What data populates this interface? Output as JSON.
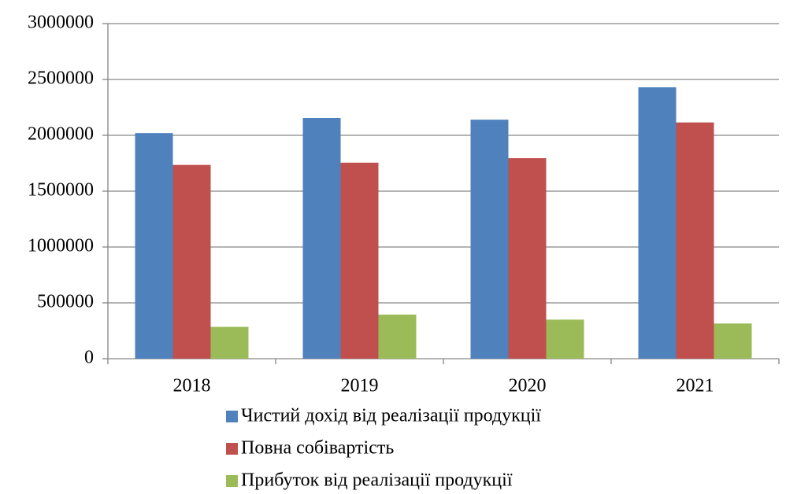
{
  "chart_data": {
    "type": "bar",
    "categories": [
      "2018",
      "2019",
      "2020",
      "2021"
    ],
    "series": [
      {
        "name": "Чистий дохід від реалізації продукції",
        "color": "#4f81bd",
        "values": [
          2020000,
          2155000,
          2140000,
          2430000
        ]
      },
      {
        "name": "Повна собівартість",
        "color": "#c0504d",
        "values": [
          1735000,
          1755000,
          1795000,
          2115000
        ]
      },
      {
        "name": "Прибуток від реалізації продукції",
        "color": "#9bbb59",
        "values": [
          285000,
          395000,
          350000,
          315000
        ]
      }
    ],
    "ylim": [
      0,
      3000000
    ],
    "yticks": [
      0,
      500000,
      1000000,
      1500000,
      2000000,
      2500000,
      3000000
    ],
    "grid": true,
    "legend": "bottom"
  }
}
